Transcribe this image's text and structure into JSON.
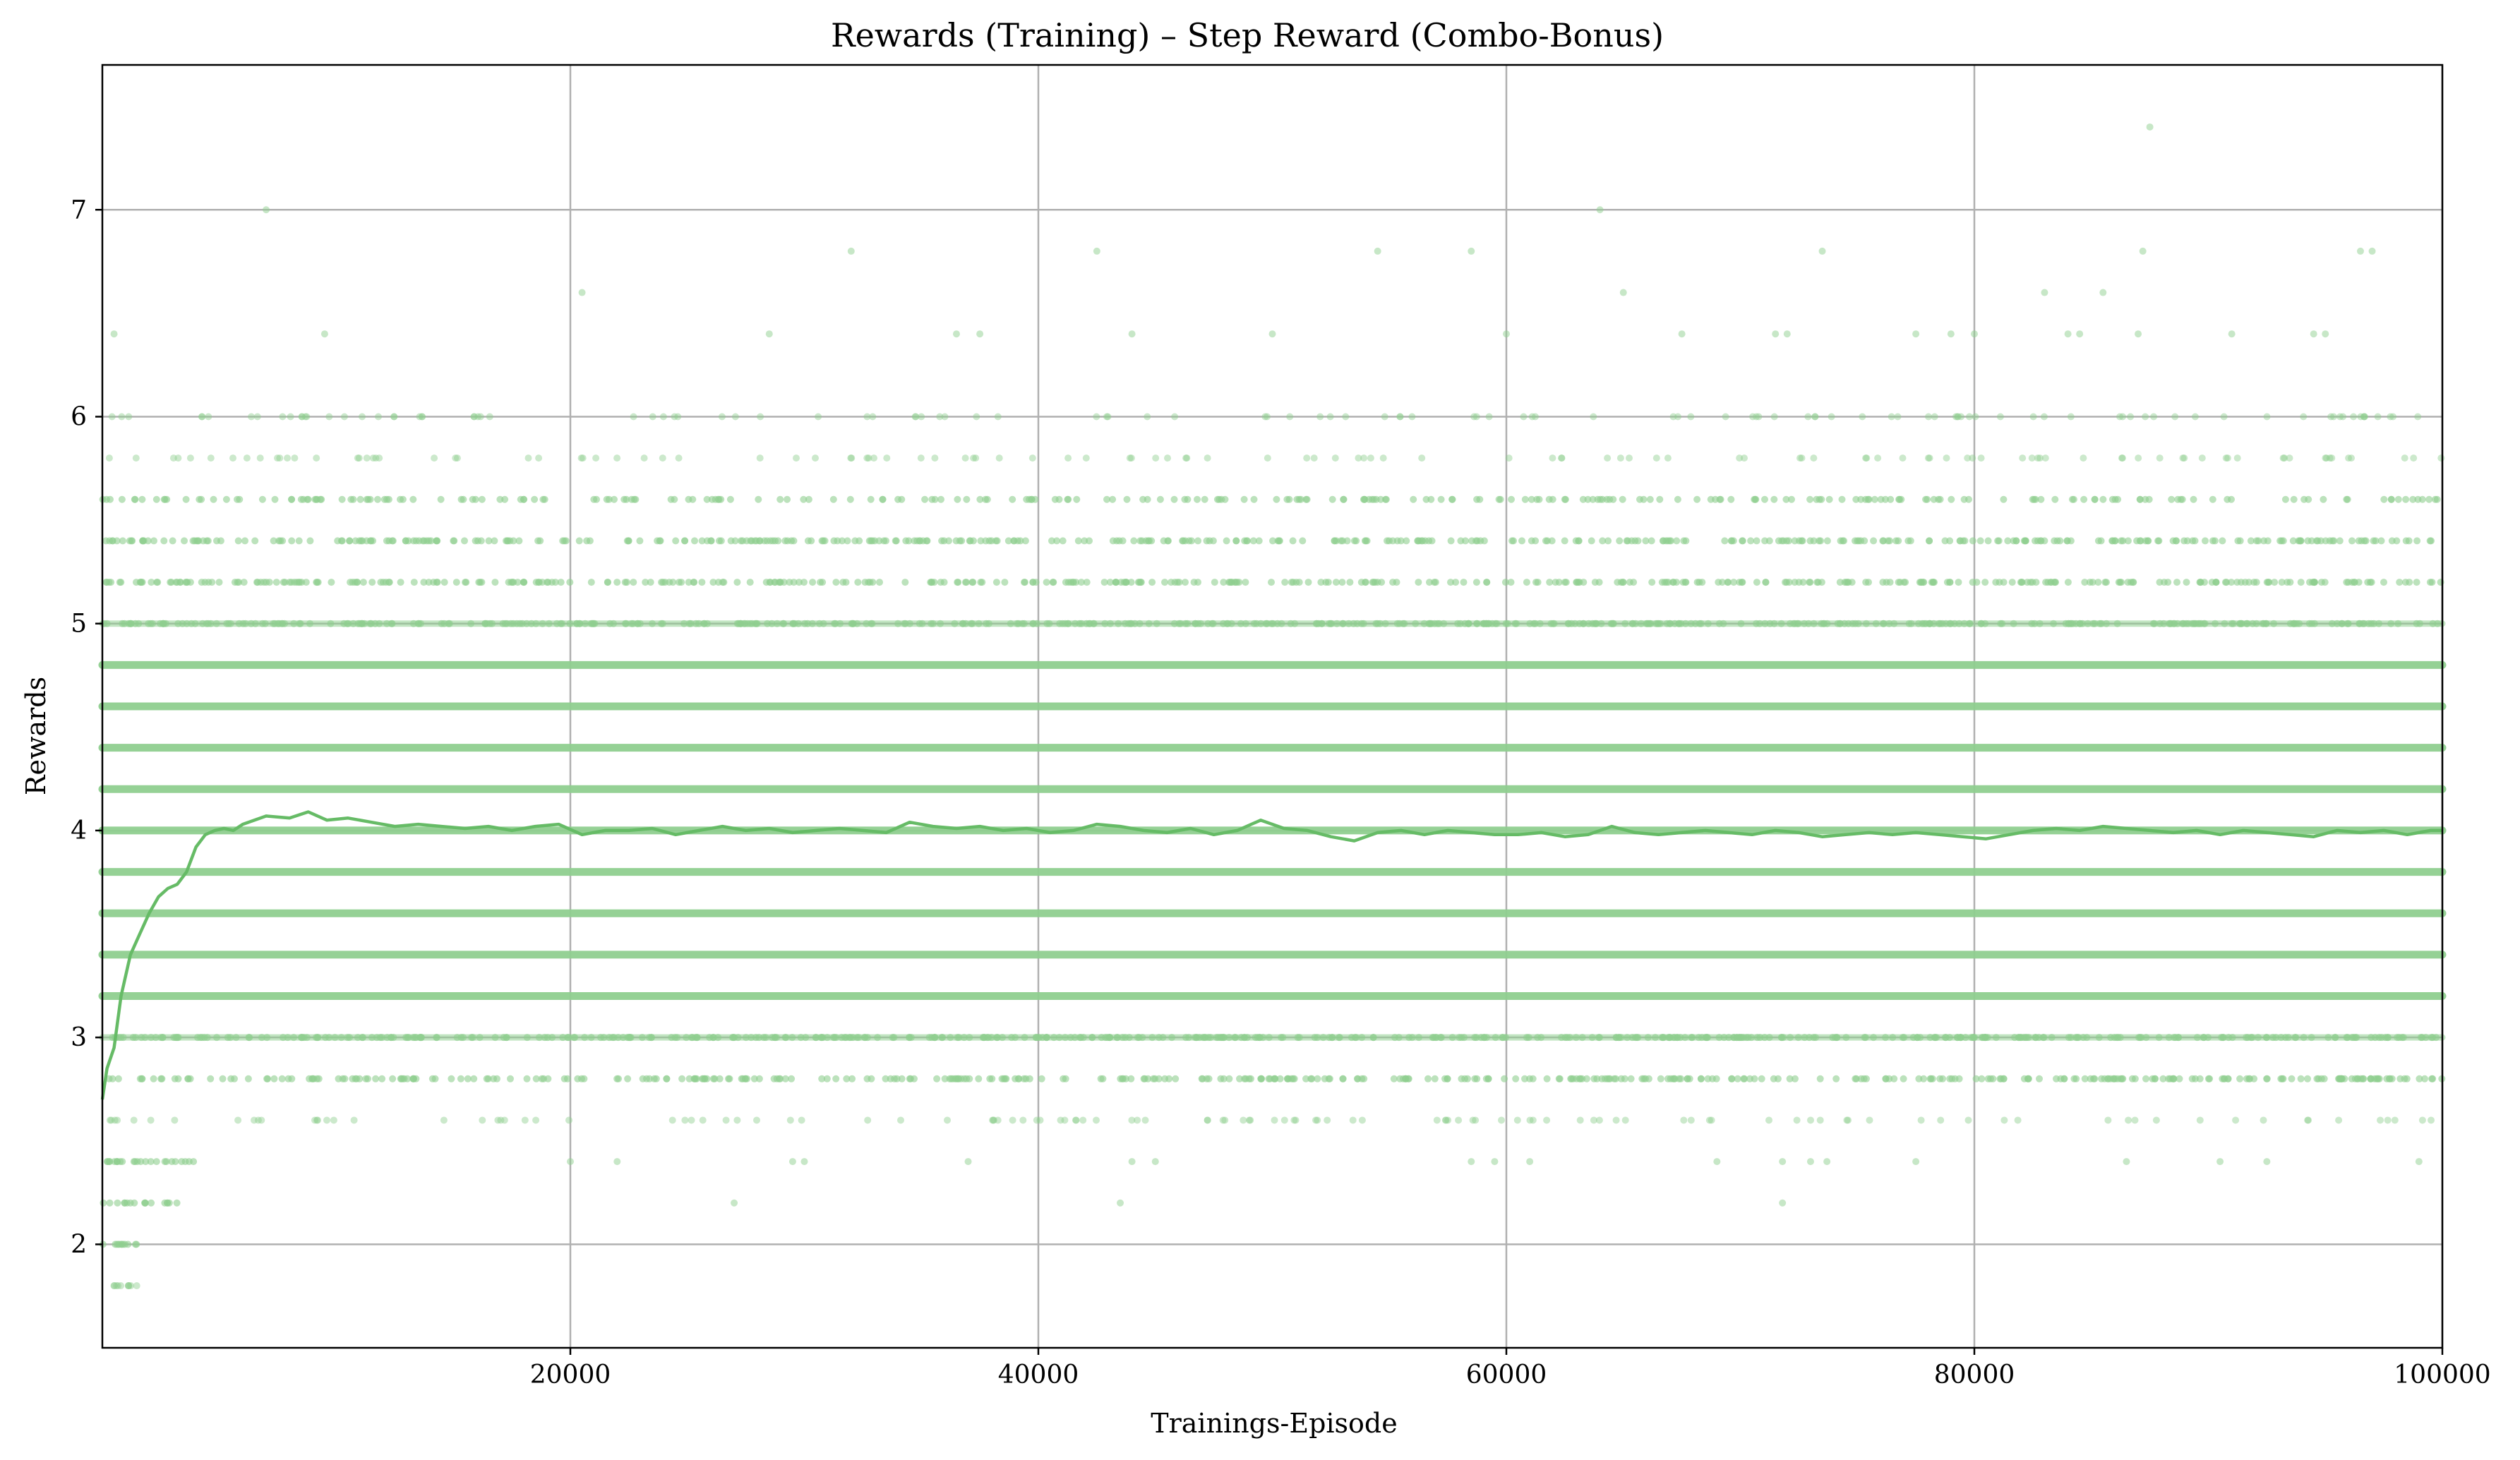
{
  "colors": {
    "scatter": "#8fcf8f",
    "line": "#66bb66",
    "grid": "#b0b0b0",
    "axes": "#000000",
    "background": "#ffffff"
  },
  "chart_data": {
    "type": "scatter",
    "title": "Rewards (Training) – Step Reward (Combo-Bonus)",
    "xlabel": "Trainings-Episode",
    "ylabel": "Rewards",
    "xlim": [
      0,
      100000
    ],
    "ylim": [
      1.5,
      7.7
    ],
    "x_ticks": [
      20000,
      40000,
      60000,
      80000,
      100000
    ],
    "x_tick_labels": [
      "20000",
      "40000",
      "60000",
      "80000",
      "100000"
    ],
    "y_ticks": [
      2,
      3,
      4,
      5,
      6,
      7
    ],
    "y_tick_labels": [
      "2",
      "3",
      "4",
      "5",
      "6",
      "7"
    ],
    "grid": true,
    "legend": "none",
    "series": [
      {
        "kind": "scatter",
        "reward_levels": [
          {
            "y": 3.0,
            "x_range": [
              0,
              100000
            ],
            "density": "high"
          },
          {
            "y": 3.2,
            "x_range": [
              0,
              100000
            ],
            "density": "full"
          },
          {
            "y": 3.4,
            "x_range": [
              0,
              100000
            ],
            "density": "full"
          },
          {
            "y": 3.6,
            "x_range": [
              0,
              100000
            ],
            "density": "full"
          },
          {
            "y": 3.8,
            "x_range": [
              0,
              100000
            ],
            "density": "full"
          },
          {
            "y": 4.0,
            "x_range": [
              0,
              100000
            ],
            "density": "full"
          },
          {
            "y": 4.2,
            "x_range": [
              0,
              100000
            ],
            "density": "full"
          },
          {
            "y": 4.4,
            "x_range": [
              0,
              100000
            ],
            "density": "full"
          },
          {
            "y": 4.6,
            "x_range": [
              0,
              100000
            ],
            "density": "full"
          },
          {
            "y": 4.8,
            "x_range": [
              0,
              100000
            ],
            "density": "full"
          },
          {
            "y": 5.0,
            "x_range": [
              0,
              100000
            ],
            "density": "high"
          },
          {
            "y": 5.2,
            "x_range": [
              0,
              100000
            ],
            "density": "medium"
          },
          {
            "y": 5.4,
            "x_range": [
              0,
              100000
            ],
            "density": "medium"
          },
          {
            "y": 5.6,
            "x_range": [
              0,
              100000
            ],
            "density": "low"
          },
          {
            "y": 5.8,
            "x_range": [
              0,
              100000
            ],
            "density": "sparse"
          },
          {
            "y": 6.0,
            "x_range": [
              0,
              100000
            ],
            "density": "sparse"
          },
          {
            "y": 2.8,
            "x_range": [
              0,
              100000
            ],
            "density": "medium"
          },
          {
            "y": 2.6,
            "x_range": [
              0,
              100000
            ],
            "density": "sparse"
          },
          {
            "y": 2.4,
            "x_range": [
              0,
              4000
            ],
            "density": "medium"
          },
          {
            "y": 2.2,
            "x_range": [
              0,
              3500
            ],
            "density": "low"
          },
          {
            "y": 2.0,
            "x_range": [
              0,
              1500
            ],
            "density": "low"
          },
          {
            "y": 1.8,
            "x_range": [
              0,
              1500
            ],
            "density": "sparse"
          }
        ],
        "outliers": [
          {
            "x": 7000,
            "y": 7.0
          },
          {
            "x": 64000,
            "y": 7.0
          },
          {
            "x": 87500,
            "y": 7.4
          },
          {
            "x": 32000,
            "y": 6.8
          },
          {
            "x": 42500,
            "y": 6.8
          },
          {
            "x": 54500,
            "y": 6.8
          },
          {
            "x": 58500,
            "y": 6.8
          },
          {
            "x": 73500,
            "y": 6.8
          },
          {
            "x": 87200,
            "y": 6.8
          },
          {
            "x": 96500,
            "y": 6.8
          },
          {
            "x": 97000,
            "y": 6.8
          },
          {
            "x": 20500,
            "y": 6.6
          },
          {
            "x": 65000,
            "y": 6.6
          },
          {
            "x": 83000,
            "y": 6.6
          },
          {
            "x": 85500,
            "y": 6.6
          },
          {
            "x": 500,
            "y": 6.4
          },
          {
            "x": 9500,
            "y": 6.4
          },
          {
            "x": 28500,
            "y": 6.4
          },
          {
            "x": 36500,
            "y": 6.4
          },
          {
            "x": 37500,
            "y": 6.4
          },
          {
            "x": 44000,
            "y": 6.4
          },
          {
            "x": 50000,
            "y": 6.4
          },
          {
            "x": 60000,
            "y": 6.4
          },
          {
            "x": 67500,
            "y": 6.4
          },
          {
            "x": 71500,
            "y": 6.4
          },
          {
            "x": 72000,
            "y": 6.4
          },
          {
            "x": 77500,
            "y": 6.4
          },
          {
            "x": 79000,
            "y": 6.4
          },
          {
            "x": 80000,
            "y": 6.4
          },
          {
            "x": 84000,
            "y": 6.4
          },
          {
            "x": 84500,
            "y": 6.4
          },
          {
            "x": 87000,
            "y": 6.4
          },
          {
            "x": 91000,
            "y": 6.4
          },
          {
            "x": 94500,
            "y": 6.4
          },
          {
            "x": 95000,
            "y": 6.4
          },
          {
            "x": 43500,
            "y": 2.2
          },
          {
            "x": 71800,
            "y": 2.2
          },
          {
            "x": 27000,
            "y": 2.2
          },
          {
            "x": 20000,
            "y": 2.4
          },
          {
            "x": 22000,
            "y": 2.4
          },
          {
            "x": 29500,
            "y": 2.4
          },
          {
            "x": 30000,
            "y": 2.4
          },
          {
            "x": 37000,
            "y": 2.4
          },
          {
            "x": 44000,
            "y": 2.4
          },
          {
            "x": 45000,
            "y": 2.4
          },
          {
            "x": 58500,
            "y": 2.4
          },
          {
            "x": 59500,
            "y": 2.4
          },
          {
            "x": 61000,
            "y": 2.4
          },
          {
            "x": 69000,
            "y": 2.4
          },
          {
            "x": 71800,
            "y": 2.4
          },
          {
            "x": 73000,
            "y": 2.4
          },
          {
            "x": 73700,
            "y": 2.4
          },
          {
            "x": 77500,
            "y": 2.4
          },
          {
            "x": 86500,
            "y": 2.4
          },
          {
            "x": 90500,
            "y": 2.4
          },
          {
            "x": 92500,
            "y": 2.4
          },
          {
            "x": 99000,
            "y": 2.4
          }
        ]
      },
      {
        "kind": "line",
        "x": [
          0,
          200,
          500,
          800,
          1200,
          1600,
          2000,
          2400,
          2800,
          3200,
          3600,
          4000,
          4400,
          4800,
          5200,
          5600,
          6000,
          7000,
          8000,
          8800,
          9600,
          10500,
          11500,
          12500,
          13500,
          14500,
          15500,
          16500,
          17500,
          18500,
          19500,
          20500,
          21500,
          22500,
          23500,
          24500,
          25500,
          26500,
          27500,
          28500,
          29500,
          30500,
          31500,
          32500,
          33500,
          34500,
          35500,
          36500,
          37500,
          38500,
          39500,
          40500,
          41500,
          42500,
          43500,
          44500,
          45500,
          46500,
          47500,
          48500,
          49500,
          50500,
          51500,
          52500,
          53500,
          54500,
          55500,
          56500,
          57500,
          58500,
          59500,
          60500,
          61500,
          62500,
          63500,
          64500,
          65500,
          66500,
          67500,
          68500,
          69500,
          70500,
          71500,
          72500,
          73500,
          74500,
          75500,
          76500,
          77500,
          78500,
          79500,
          80500,
          81500,
          82500,
          83500,
          84500,
          85500,
          86500,
          87500,
          88500,
          89500,
          90500,
          91500,
          92500,
          93500,
          94500,
          95500,
          96500,
          97500,
          98500,
          99500,
          100000
        ],
        "y": [
          2.7,
          2.85,
          2.95,
          3.2,
          3.4,
          3.5,
          3.6,
          3.68,
          3.72,
          3.74,
          3.8,
          3.92,
          3.98,
          4.0,
          4.01,
          4.0,
          4.03,
          4.07,
          4.06,
          4.09,
          4.05,
          4.06,
          4.04,
          4.02,
          4.03,
          4.02,
          4.01,
          4.02,
          4.0,
          4.02,
          4.03,
          3.98,
          4.0,
          4.0,
          4.01,
          3.98,
          4.0,
          4.02,
          4.0,
          4.01,
          3.99,
          4.0,
          4.01,
          4.0,
          3.99,
          4.04,
          4.02,
          4.01,
          4.02,
          4.0,
          4.01,
          3.99,
          4.0,
          4.03,
          4.02,
          4.0,
          3.99,
          4.01,
          3.98,
          4.0,
          4.05,
          4.01,
          4.0,
          3.97,
          3.95,
          3.99,
          4.0,
          3.98,
          4.0,
          3.99,
          3.98,
          3.98,
          3.99,
          3.97,
          3.98,
          4.02,
          3.99,
          3.98,
          3.99,
          4.0,
          3.99,
          3.98,
          4.0,
          3.99,
          3.97,
          3.98,
          3.99,
          3.98,
          3.99,
          3.98,
          3.97,
          3.96,
          3.98,
          4.0,
          4.01,
          4.0,
          4.02,
          4.01,
          4.0,
          3.99,
          4.0,
          3.98,
          4.0,
          3.99,
          3.98,
          3.97,
          4.0,
          3.99,
          4.0,
          3.98,
          4.0,
          4.0
        ]
      }
    ]
  }
}
